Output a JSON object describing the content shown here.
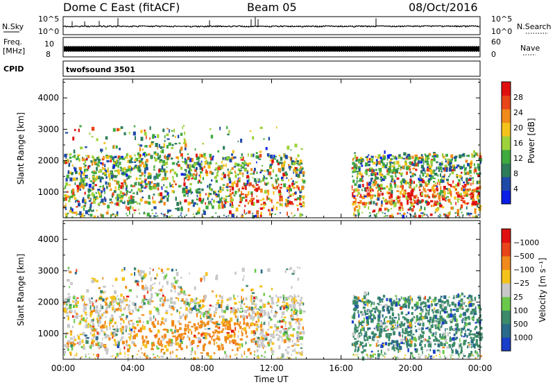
{
  "header": {
    "station": "Dome C East (fitACF)",
    "beam": "Beam 05",
    "date": "08/Oct/2016"
  },
  "strip_panels": {
    "nsky_label": "N.Sky",
    "nsky_ticks": [
      "10^5",
      "10^0"
    ],
    "nsearch_label": "N.Search",
    "nsearch_ticks": [
      "10^5",
      "10^0"
    ],
    "freq_label_line1": "Freq.",
    "freq_label_line2": "[MHz]",
    "freq_ticks": [
      "10",
      "8"
    ],
    "nave_label": "Nave",
    "nave_ticks": [
      "60",
      "0"
    ],
    "cpid_label": "CPID",
    "cpid_name": "twofsound 3501"
  },
  "chart_data": [
    {
      "type": "heatmap",
      "name": "power-panel",
      "ylabel": "Slant Range [km]",
      "y_ticks": [
        1000,
        2000,
        3000,
        4000
      ],
      "ylim": [
        180,
        4600
      ],
      "xlim": [
        0,
        24
      ],
      "colorbar": {
        "label": "Power [dB]",
        "ticks": [
          "4",
          "8",
          "12",
          "16",
          "20",
          "24",
          "28"
        ],
        "colors": [
          "#0a1ee6",
          "#1f4aa8",
          "#2e7d5a",
          "#3faa3f",
          "#9ed23a",
          "#f5c21c",
          "#f08a1a",
          "#e8451a",
          "#e01010"
        ]
      },
      "data_coverage": [
        {
          "start_h": 0.0,
          "end_h": 13.8,
          "range_min_km": 300,
          "range_max_km": 3100
        },
        {
          "start_h": 16.6,
          "end_h": 24.0,
          "range_min_km": 400,
          "range_max_km": 2300
        }
      ]
    },
    {
      "type": "heatmap",
      "name": "velocity-panel",
      "ylabel": "Slant Range [km]",
      "y_ticks": [
        1000,
        2000,
        3000,
        4000
      ],
      "ylim": [
        180,
        4600
      ],
      "xlim": [
        0,
        24
      ],
      "colorbar": {
        "label": "Velocity [m s⁻¹]",
        "ticks": [
          "1000",
          "500",
          "100",
          "25",
          "−25",
          "−100",
          "−500",
          "−1000"
        ],
        "colors": [
          "#1a3ec8",
          "#2a6a8a",
          "#3c8a6a",
          "#6ac84a",
          "#c8c8c8",
          "#f5c21c",
          "#f08a1a",
          "#e8451a",
          "#e01010"
        ]
      },
      "data_coverage": [
        {
          "start_h": 0.0,
          "end_h": 13.8,
          "range_min_km": 300,
          "range_max_km": 3100
        },
        {
          "start_h": 16.6,
          "end_h": 24.0,
          "range_min_km": 400,
          "range_max_km": 2300
        }
      ]
    }
  ],
  "x_axis": {
    "label": "Time UT",
    "ticks": [
      "00:00",
      "04:00",
      "08:00",
      "12:00",
      "16:00",
      "20:00",
      "00:00"
    ]
  }
}
